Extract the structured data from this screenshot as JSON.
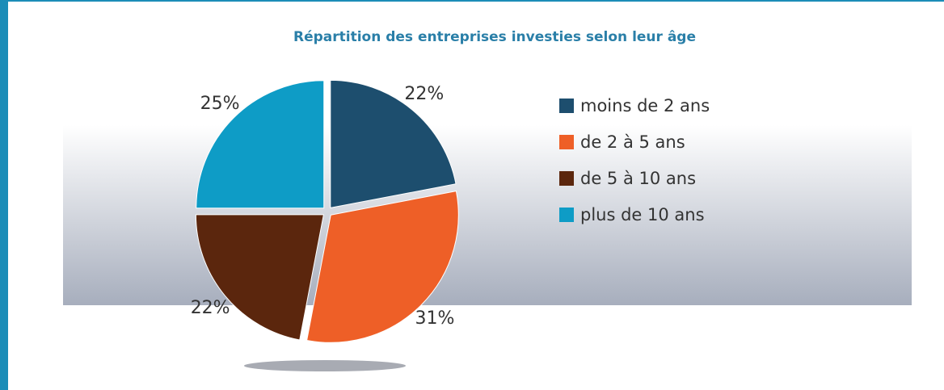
{
  "chart_data": {
    "type": "pie",
    "title": "Répartition des entreprises investies selon leur âge",
    "categories": [
      "moins de 2 ans",
      "de 2 à 5 ans",
      "de 5 à 10 ans",
      "plus de 10 ans"
    ],
    "values": [
      22,
      31,
      22,
      25
    ],
    "value_labels": [
      "22%",
      "31%",
      "22%",
      "25%"
    ],
    "colors": [
      "#1d4e6e",
      "#ee5f27",
      "#5b260d",
      "#0e9cc6"
    ],
    "legend": "right"
  }
}
